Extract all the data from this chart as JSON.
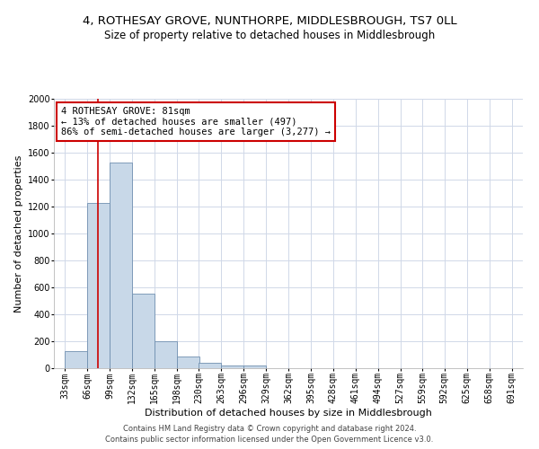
{
  "title": "4, ROTHESAY GROVE, NUNTHORPE, MIDDLESBROUGH, TS7 0LL",
  "subtitle": "Size of property relative to detached houses in Middlesbrough",
  "xlabel": "Distribution of detached houses by size in Middlesbrough",
  "ylabel": "Number of detached properties",
  "footer1": "Contains HM Land Registry data © Crown copyright and database right 2024.",
  "footer2": "Contains public sector information licensed under the Open Government Licence v3.0.",
  "bins": [
    33,
    66,
    99,
    132,
    165,
    198,
    230,
    263,
    296,
    329,
    362,
    395,
    428,
    461,
    494,
    527,
    559,
    592,
    625,
    658,
    691
  ],
  "bar_heights": [
    130,
    1230,
    1530,
    555,
    200,
    90,
    40,
    20,
    20,
    0,
    0,
    0,
    0,
    0,
    0,
    0,
    0,
    0,
    0,
    0
  ],
  "bar_color": "#c8d8e8",
  "bar_edge_color": "#7090b0",
  "grid_color": "#d0d8e8",
  "ylim": [
    0,
    2000
  ],
  "yticks": [
    0,
    200,
    400,
    600,
    800,
    1000,
    1200,
    1400,
    1600,
    1800,
    2000
  ],
  "property_size": 81,
  "red_line_color": "#cc0000",
  "annotation_line1": "4 ROTHESAY GROVE: 81sqm",
  "annotation_line2": "← 13% of detached houses are smaller (497)",
  "annotation_line3": "86% of semi-detached houses are larger (3,277) →",
  "annotation_box_color": "#ffffff",
  "annotation_border_color": "#cc0000",
  "title_fontsize": 9.5,
  "subtitle_fontsize": 8.5,
  "tick_fontsize": 7,
  "label_fontsize": 8,
  "annotation_fontsize": 7.5
}
